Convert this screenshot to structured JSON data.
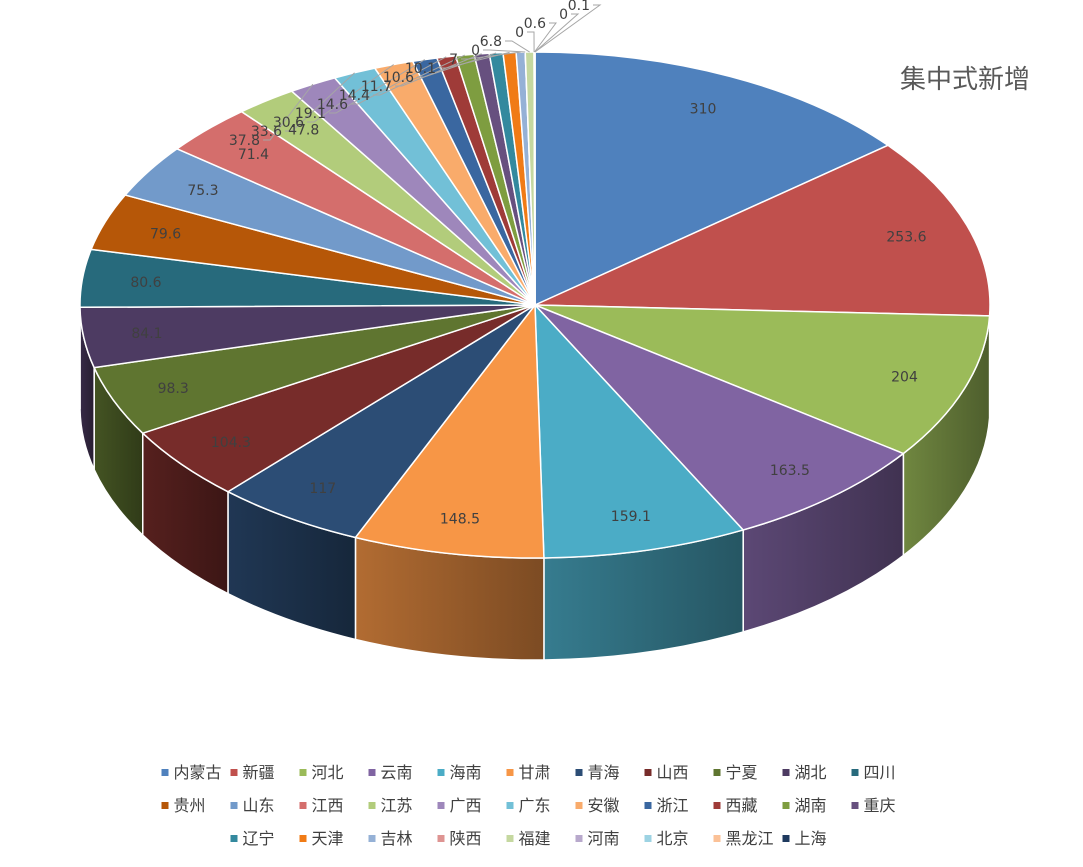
{
  "chart_data": {
    "type": "pie",
    "style": "3d",
    "title": "集中式新增",
    "legend_position": "bottom",
    "categories": [
      "内蒙古",
      "新疆",
      "河北",
      "云南",
      "海南",
      "甘肃",
      "青海",
      "山西",
      "宁夏",
      "湖北",
      "四川",
      "贵州",
      "山东",
      "江西",
      "江苏",
      "广西",
      "广东",
      "安徽",
      "浙江",
      "西藏",
      "湖南",
      "重庆",
      "辽宁",
      "天津",
      "吉林",
      "陕西",
      "福建",
      "河南",
      "北京",
      "黑龙江",
      "上海"
    ],
    "values": [
      310,
      253.6,
      204,
      163.5,
      159.1,
      148.5,
      117,
      104.3,
      98.3,
      84.1,
      80.6,
      79.6,
      75.3,
      71.4,
      47.8,
      37.8,
      33.6,
      30.6,
      19.1,
      14.6,
      14.4,
      11.7,
      10.6,
      10.1,
      7,
      0,
      6.8,
      0,
      0.6,
      0,
      0.1
    ],
    "data_labels": [
      "310",
      "253.6",
      "204",
      "163.5",
      "159.1",
      "148.5",
      "117",
      "104.3",
      "98.3",
      "84.1",
      "80.6",
      "79.6",
      "75.3",
      "71.4",
      "47.8",
      "37.8",
      "33.6",
      "30.6",
      "19.1",
      "14.6",
      "14.4",
      "11.7",
      "10.6",
      "10.1",
      "7",
      "0",
      "6.8",
      "0",
      "0.6",
      "0",
      "0.1"
    ],
    "colors": [
      "#4f81bd",
      "#c0504d",
      "#9bbb59",
      "#8064a2",
      "#4bacc6",
      "#f79646",
      "#2c4d75",
      "#772c2a",
      "#5f7530",
      "#4d3b62",
      "#276a7c",
      "#b65708",
      "#729aca",
      "#d46e6c",
      "#b2cc7b",
      "#9e87bb",
      "#72c0d7",
      "#f9ab6b",
      "#3a67a0",
      "#9f3b38",
      "#7e9d40",
      "#67507f",
      "#33899e",
      "#f07b16",
      "#95b1d6",
      "#de9492",
      "#c5d8a0",
      "#b8a9cc",
      "#9dd3e3",
      "#fbc197",
      "#1f3a5f"
    ]
  }
}
